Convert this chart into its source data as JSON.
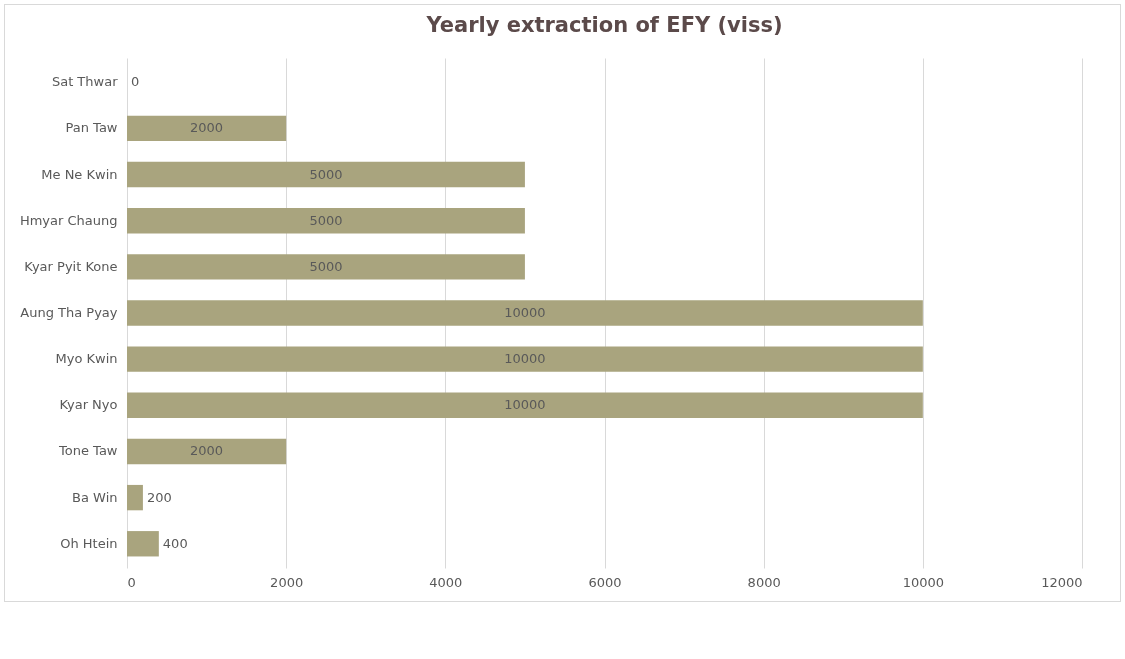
{
  "chart_data": {
    "type": "bar",
    "orientation": "horizontal",
    "title": "Yearly extraction of EFY (viss)",
    "categories": [
      "Sat Thwar",
      "Pan Taw",
      "Me Ne Kwin",
      "Hmyar Chaung",
      "Kyar Pyit Kone",
      "Aung Tha Pyay",
      "Myo Kwin",
      "Kyar Nyo",
      "Tone Taw",
      "Ba Win",
      "Oh Htein"
    ],
    "values": [
      0,
      2000,
      5000,
      5000,
      5000,
      10000,
      10000,
      10000,
      2000,
      200,
      400
    ],
    "color": "#a9a47e",
    "xlim": [
      0,
      12000
    ],
    "xticks": [
      0,
      2000,
      4000,
      6000,
      8000,
      10000,
      12000
    ],
    "grid": "x",
    "data_labels": true
  }
}
